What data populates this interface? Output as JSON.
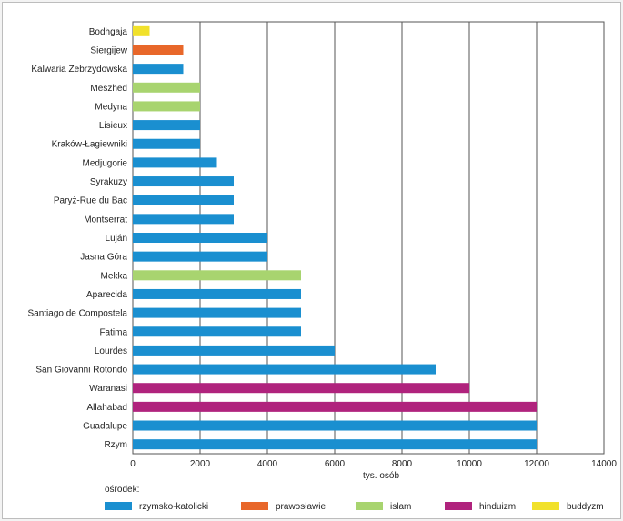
{
  "chart_data": {
    "type": "bar",
    "orientation": "horizontal",
    "xlabel": "tys. osób",
    "xlim": [
      0,
      14000
    ],
    "xticks": [
      0,
      2000,
      4000,
      6000,
      8000,
      10000,
      12000,
      14000
    ],
    "grid": true,
    "legend": {
      "title": "ośrodek:",
      "placement": "bottom",
      "entries": [
        {
          "key": "rk",
          "label": "rzymsko-katolicki",
          "color": "#1a8fd0"
        },
        {
          "key": "pr",
          "label": "prawosławie",
          "color": "#e8672a"
        },
        {
          "key": "is",
          "label": "islam",
          "color": "#a8d46f"
        },
        {
          "key": "hi",
          "label": "hinduizm",
          "color": "#b0237d"
        },
        {
          "key": "bu",
          "label": "buddyzm",
          "color": "#f1e12b"
        }
      ]
    },
    "bars": [
      {
        "label": "Bodhgaja",
        "value": 500,
        "group": "bu"
      },
      {
        "label": "Siergijew",
        "value": 1500,
        "group": "pr"
      },
      {
        "label": "Kalwaria Zebrzydowska",
        "value": 1500,
        "group": "rk"
      },
      {
        "label": "Meszhed",
        "value": 2000,
        "group": "is"
      },
      {
        "label": "Medyna",
        "value": 2000,
        "group": "is"
      },
      {
        "label": "Lisieux",
        "value": 2000,
        "group": "rk"
      },
      {
        "label": "Kraków-Łagiewniki",
        "value": 2000,
        "group": "rk"
      },
      {
        "label": "Medjugorie",
        "value": 2500,
        "group": "rk"
      },
      {
        "label": "Syrakuzy",
        "value": 3000,
        "group": "rk"
      },
      {
        "label": "Paryż-Rue du Bac",
        "value": 3000,
        "group": "rk"
      },
      {
        "label": "Montserrat",
        "value": 3000,
        "group": "rk"
      },
      {
        "label": "Luján",
        "value": 4000,
        "group": "rk"
      },
      {
        "label": "Jasna Góra",
        "value": 4000,
        "group": "rk"
      },
      {
        "label": "Mekka",
        "value": 5000,
        "group": "is"
      },
      {
        "label": "Aparecida",
        "value": 5000,
        "group": "rk"
      },
      {
        "label": "Santiago de Compostela",
        "value": 5000,
        "group": "rk"
      },
      {
        "label": "Fatima",
        "value": 5000,
        "group": "rk"
      },
      {
        "label": "Lourdes",
        "value": 6000,
        "group": "rk"
      },
      {
        "label": "San Giovanni Rotondo",
        "value": 9000,
        "group": "rk"
      },
      {
        "label": "Waranasi",
        "value": 10000,
        "group": "hi"
      },
      {
        "label": "Allahabad",
        "value": 12000,
        "group": "hi"
      },
      {
        "label": "Guadalupe",
        "value": 12000,
        "group": "rk"
      },
      {
        "label": "Rzym",
        "value": 12000,
        "group": "rk"
      }
    ]
  }
}
